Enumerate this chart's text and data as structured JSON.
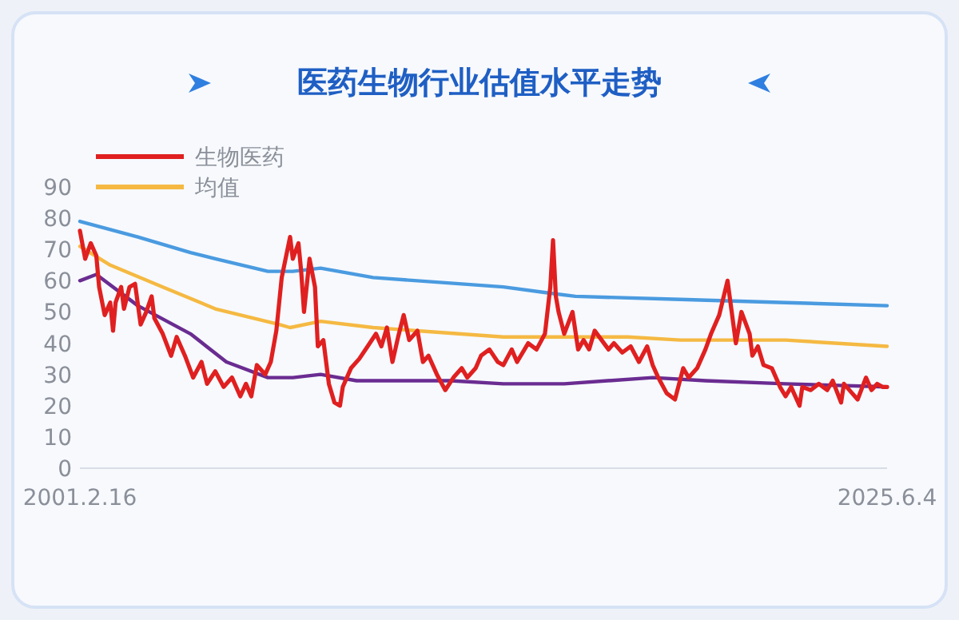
{
  "chart_data": {
    "type": "line",
    "title": "医药生物行业估值水平走势",
    "legend": "top left",
    "ylim": [
      0,
      90
    ],
    "yticks": [
      0,
      10,
      20,
      30,
      40,
      50,
      60,
      70,
      80,
      90
    ],
    "xlim": [
      "2001-02-16",
      "2025-06-04"
    ],
    "xticks": [
      {
        "value": "2001-02-16",
        "label": "2001.2.16"
      },
      {
        "value": "2025-06-04",
        "label": "2025.6.4"
      }
    ],
    "series": [
      {
        "color": "#4a9be0",
        "x": [
          "2001-02-16",
          "2002-11",
          "2004-06",
          "2005-03",
          "2006-10",
          "2007-07",
          "2008-05",
          "2009-12",
          "2013-11",
          "2015-04",
          "2016-01",
          "2019-03",
          "2022-05",
          "2025-06-04"
        ],
        "values": [
          79,
          74,
          69,
          67,
          63,
          63,
          64,
          61,
          58,
          56,
          55,
          54,
          53,
          52
        ]
      },
      {
        "name": "均值",
        "color": "#f5b942",
        "x": [
          "2001-02-16",
          "2002-01",
          "2003-08",
          "2005-03",
          "2007-02",
          "2007-06",
          "2008-05",
          "2009-12",
          "2013-11",
          "2014-06",
          "2017-08",
          "2019-03",
          "2022-05",
          "2025-06-04"
        ],
        "values": [
          71,
          65,
          58,
          51,
          46,
          45,
          47,
          45,
          42,
          42,
          42,
          41,
          41,
          39
        ]
      },
      {
        "color": "#6a2c91",
        "x": [
          "2001-02-16",
          "2001-08",
          "2002-11",
          "2004-06",
          "2005-07",
          "2006-10",
          "2007-07",
          "2008-05",
          "2009-06",
          "2011-01",
          "2012-04",
          "2013-11",
          "2015-09",
          "2018-05",
          "2019-12",
          "2022-05",
          "2025-06-04"
        ],
        "values": [
          60,
          62,
          52,
          43,
          34,
          29,
          29,
          30,
          28,
          28,
          28,
          27,
          27,
          29,
          28,
          27,
          26
        ]
      },
      {
        "name": "生物医药",
        "color": "#e02020",
        "x": [
          "2001-02-16",
          "2001-04",
          "2001-06",
          "2001-08",
          "2001-09",
          "2001-11",
          "2002-01",
          "2002-02",
          "2002-03",
          "2002-05",
          "2002-06",
          "2002-08",
          "2002-10",
          "2002-12",
          "2003-02",
          "2003-04",
          "2003-05",
          "2003-08",
          "2003-11",
          "2004-01",
          "2004-04",
          "2004-07",
          "2004-10",
          "2004-12",
          "2005-03",
          "2005-06",
          "2005-09",
          "2005-12",
          "2006-02",
          "2006-04",
          "2006-06",
          "2006-09",
          "2006-11",
          "2007-01",
          "2007-03",
          "2007-06",
          "2007-07",
          "2007-09",
          "2007-10",
          "2007-11",
          "2008-01",
          "2008-03",
          "2008-04",
          "2008-06",
          "2008-08",
          "2008-10",
          "2008-12",
          "2009-01",
          "2009-04",
          "2009-07",
          "2009-10",
          "2010-01",
          "2010-03",
          "2010-05",
          "2010-07",
          "2010-09",
          "2010-11",
          "2011-01",
          "2011-04",
          "2011-06",
          "2011-08",
          "2011-11",
          "2012-02",
          "2012-05",
          "2012-08",
          "2012-10",
          "2013-01",
          "2013-03",
          "2013-06",
          "2013-09",
          "2013-11",
          "2014-02",
          "2014-04",
          "2014-08",
          "2014-11",
          "2015-02",
          "2015-04",
          "2015-05",
          "2015-06",
          "2015-07",
          "2015-09",
          "2015-12",
          "2016-02",
          "2016-04",
          "2016-06",
          "2016-08",
          "2017-01",
          "2017-03",
          "2017-06",
          "2017-09",
          "2017-12",
          "2018-03",
          "2018-05",
          "2018-07",
          "2018-10",
          "2019-01",
          "2019-04",
          "2019-06",
          "2019-09",
          "2019-12",
          "2020-02",
          "2020-05",
          "2020-08",
          "2020-11",
          "2021-01",
          "2021-04",
          "2021-05",
          "2021-07",
          "2021-09",
          "2021-12",
          "2022-03",
          "2022-05",
          "2022-07",
          "2022-10",
          "2022-11",
          "2023-02",
          "2023-05",
          "2023-08",
          "2023-10",
          "2024-01",
          "2024-02",
          "2024-05",
          "2024-07",
          "2024-10",
          "2024-12",
          "2025-02",
          "2025-04",
          "2025-06-04"
        ],
        "values": [
          76,
          67,
          72,
          68,
          58,
          49,
          53,
          44,
          53,
          58,
          51,
          58,
          59,
          46,
          50,
          55,
          48,
          43,
          36,
          42,
          36,
          29,
          34,
          27,
          31,
          26,
          29,
          23,
          27,
          23,
          33,
          30,
          34,
          44,
          61,
          74,
          67,
          72,
          63,
          50,
          67,
          58,
          39,
          41,
          27,
          21,
          20,
          26,
          32,
          35,
          39,
          43,
          39,
          45,
          34,
          42,
          49,
          41,
          44,
          34,
          36,
          30,
          25,
          29,
          32,
          29,
          32,
          36,
          38,
          34,
          33,
          38,
          34,
          40,
          38,
          43,
          58,
          73,
          55,
          50,
          43,
          50,
          38,
          41,
          38,
          44,
          38,
          40,
          37,
          39,
          34,
          39,
          33,
          29,
          24,
          22,
          32,
          29,
          32,
          38,
          43,
          49,
          60,
          40,
          50,
          43,
          36,
          39,
          33,
          32,
          26,
          23,
          26,
          20,
          26,
          25,
          27,
          25,
          28,
          21,
          27,
          24,
          22,
          29,
          25,
          27,
          26,
          26
        ]
      }
    ]
  }
}
